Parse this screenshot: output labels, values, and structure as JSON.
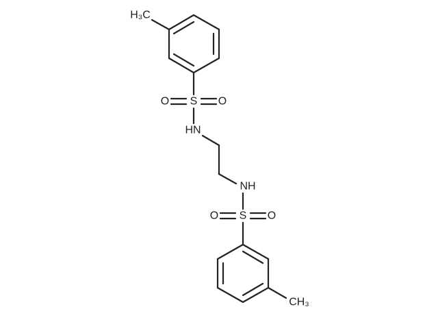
{
  "molecule": {
    "labels": [
      "H₃C",
      "O",
      "S",
      "O",
      "HN",
      "NH",
      "O",
      "S",
      "O",
      "CH₃"
    ]
  }
}
